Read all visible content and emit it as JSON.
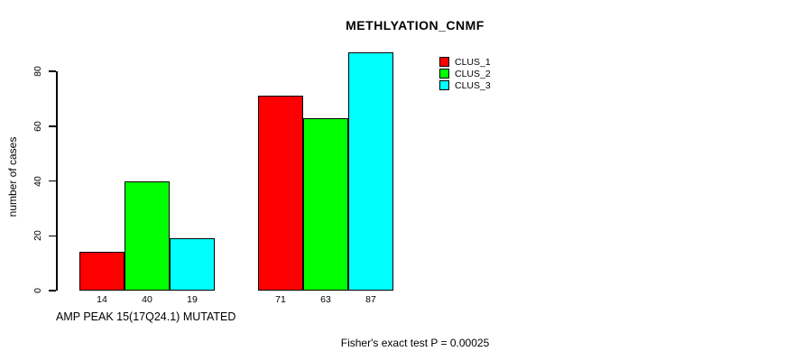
{
  "chart_data": {
    "type": "bar",
    "title": "METHLYATION_CNMF",
    "xlabel": "AMP PEAK 15(17Q24.1) MUTATED",
    "ylabel": "number of cases",
    "ylim": [
      0,
      80
    ],
    "yticks": [
      0,
      20,
      40,
      60,
      80
    ],
    "grid": false,
    "legend_position": "top-right",
    "bar_value_labels_shown": true,
    "categories": [
      "",
      ""
    ],
    "series": [
      {
        "name": "CLUS_1",
        "color": "#FF0000",
        "values": [
          14,
          71
        ]
      },
      {
        "name": "CLUS_2",
        "color": "#00FF00",
        "values": [
          40,
          63
        ]
      },
      {
        "name": "CLUS_3",
        "color": "#00FFFF",
        "values": [
          19,
          87
        ]
      }
    ],
    "annotation": "Fisher's exact test P = 0.00025"
  }
}
